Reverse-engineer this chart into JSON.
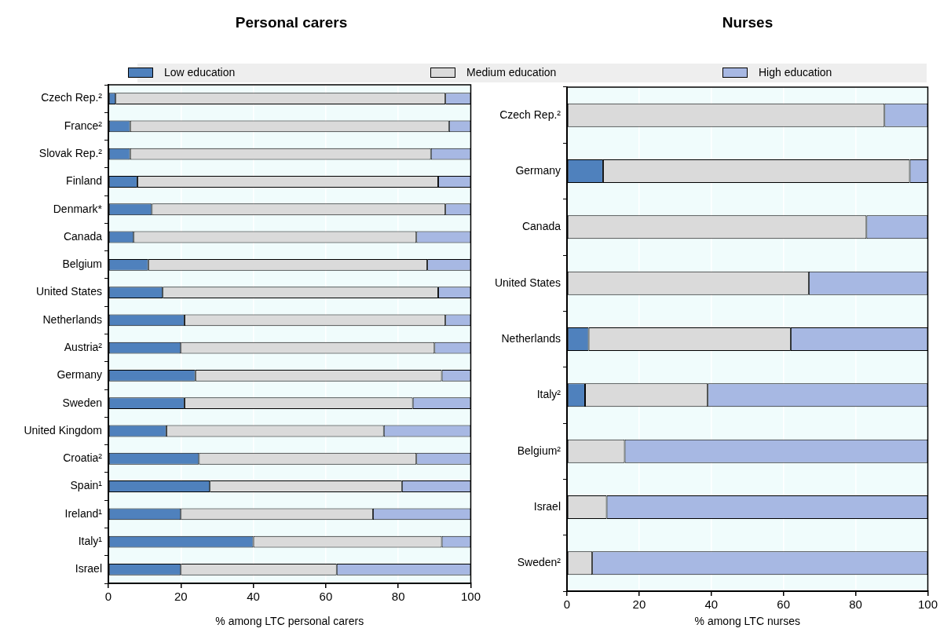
{
  "chart_data": [
    {
      "type": "bar",
      "title": "Personal carers",
      "orientation": "horizontal",
      "stacked": true,
      "xlabel": "% among LTC personal carers",
      "xlim": [
        0,
        100
      ],
      "xticks": [
        0,
        20,
        40,
        60,
        80,
        100
      ],
      "grid": "x",
      "legend": "top",
      "categories": [
        "Czech Rep.²",
        "France²",
        "Slovak Rep.²",
        "Finland",
        "Denmark*",
        "Canada",
        "Belgium",
        "United States",
        "Netherlands",
        "Austria²",
        "Germany",
        "Sweden",
        "United Kingdom",
        "Croatia²",
        "Spain¹",
        "Ireland¹",
        "Italy¹",
        "Israel"
      ],
      "series": [
        {
          "name": "Low education",
          "color": "#4f81bd",
          "values": [
            2,
            6,
            6,
            8,
            12,
            7,
            11,
            15,
            21,
            20,
            24,
            21,
            16,
            25,
            28,
            20,
            40,
            20
          ]
        },
        {
          "name": "Medium education",
          "color": "#dadada",
          "values": [
            91,
            88,
            83,
            83,
            81,
            78,
            77,
            76,
            72,
            70,
            68,
            63,
            60,
            60,
            53,
            53,
            52,
            43
          ]
        },
        {
          "name": "High education",
          "color": "#a7b8e3",
          "values": [
            7,
            6,
            11,
            9,
            7,
            15,
            12,
            9,
            7,
            10,
            8,
            16,
            24,
            15,
            19,
            27,
            8,
            37
          ]
        }
      ]
    },
    {
      "type": "bar",
      "title": "Nurses",
      "orientation": "horizontal",
      "stacked": true,
      "xlabel": "% among LTC nurses",
      "xlim": [
        0,
        100
      ],
      "xticks": [
        0,
        20,
        40,
        60,
        80,
        100
      ],
      "grid": "x",
      "categories": [
        "Czech Rep.²",
        "Germany",
        "Canada",
        "United States",
        "Netherlands",
        "Italy²",
        "Belgium²",
        "Israel",
        "Sweden²"
      ],
      "series": [
        {
          "color": "#4f81bd",
          "values": [
            0,
            10,
            0,
            0,
            6,
            5,
            0,
            0,
            0
          ]
        },
        {
          "color": "#dadada",
          "values": [
            88,
            85,
            83,
            67,
            56,
            34,
            16,
            11,
            7
          ]
        },
        {
          "color": "#a7b8e3",
          "values": [
            12,
            5,
            17,
            33,
            38,
            61,
            84,
            89,
            93
          ]
        }
      ]
    }
  ]
}
